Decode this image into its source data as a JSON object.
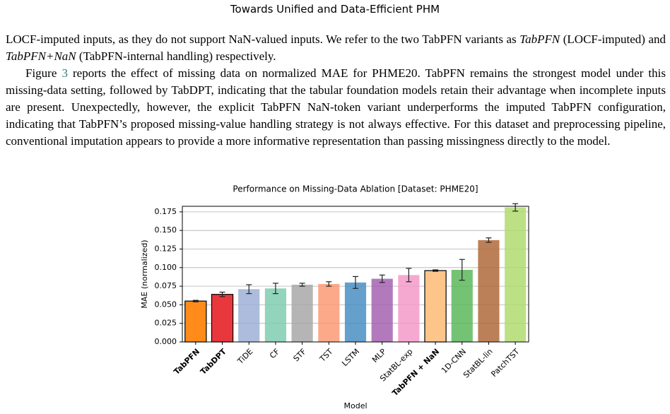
{
  "header": {
    "title": "Towards Unified and Data-Efficient PHM"
  },
  "paragraphs": [
    {
      "parts": [
        "LOCF-imputed inputs, as they do not support NaN-valued inputs. We refer to the two TabPFN variants as ",
        "TabPFN",
        " (LOCF-imputed) and ",
        "TabPFN+NaN",
        " (TabPFN-internal handling) respectively."
      ]
    },
    {
      "parts": [
        "Figure ",
        "3",
        " reports the effect of missing data on normalized MAE for PHME20. TabPFN remains the strongest model under this missing-data setting, followed by TabDPT, indicating that the tabular foundation models retain their advantage when incomplete inputs are present. Unexpectedly, however, the explicit TabPFN NaN-token variant underperforms the imputed TabPFN configuration, indicating that TabPFN’s proposed missing-value handling strategy is not always effective. For this dataset and preprocessing pipeline, conventional imputation appears to provide a more informative representation than passing missingness directly to the model."
      ]
    }
  ],
  "chart_data": {
    "type": "bar",
    "title": "Performance on Missing-Data Ablation [Dataset: PHME20]",
    "x_label": "Model",
    "y_label": "MAE (normalized)",
    "categories": [
      "TabPFN",
      "TabDPT",
      "TiDE",
      "CF",
      "STF",
      "TST",
      "LSTM",
      "MLP",
      "StatBL-exp",
      "TabPFN + NaN",
      "1D-CNN",
      "StatBL-lin",
      "PatchTST"
    ],
    "values": [
      0.055,
      0.064,
      0.071,
      0.072,
      0.077,
      0.078,
      0.08,
      0.085,
      0.09,
      0.096,
      0.097,
      0.137,
      0.181
    ],
    "errors": [
      0.001,
      0.003,
      0.006,
      0.007,
      0.002,
      0.003,
      0.008,
      0.005,
      0.009,
      0.001,
      0.014,
      0.003,
      0.005
    ],
    "colors": [
      "#ff8c1a",
      "#e8383d",
      "#9fb0d6",
      "#7fcdb0",
      "#a8a8a8",
      "#fb9a76",
      "#4a8fc4",
      "#a463b0",
      "#f49ac8",
      "#fdc58a",
      "#5cb85c",
      "#b06a3b",
      "#b0db6e"
    ],
    "bold": [
      true,
      true,
      false,
      false,
      false,
      false,
      false,
      false,
      false,
      true,
      false,
      false,
      false
    ],
    "ylim": [
      0,
      0.1825
    ],
    "yticks": [
      {
        "value": 0,
        "label": "0.000"
      },
      {
        "value": 0.025,
        "label": "0.025"
      },
      {
        "value": 0.05,
        "label": "0.050"
      },
      {
        "value": 0.075,
        "label": "0.075"
      },
      {
        "value": 0.1,
        "label": "0.100"
      },
      {
        "value": 0.125,
        "label": "0.125"
      },
      {
        "value": 0.15,
        "label": "0.150"
      },
      {
        "value": 0.175,
        "label": "0.175"
      }
    ],
    "grid": true
  }
}
